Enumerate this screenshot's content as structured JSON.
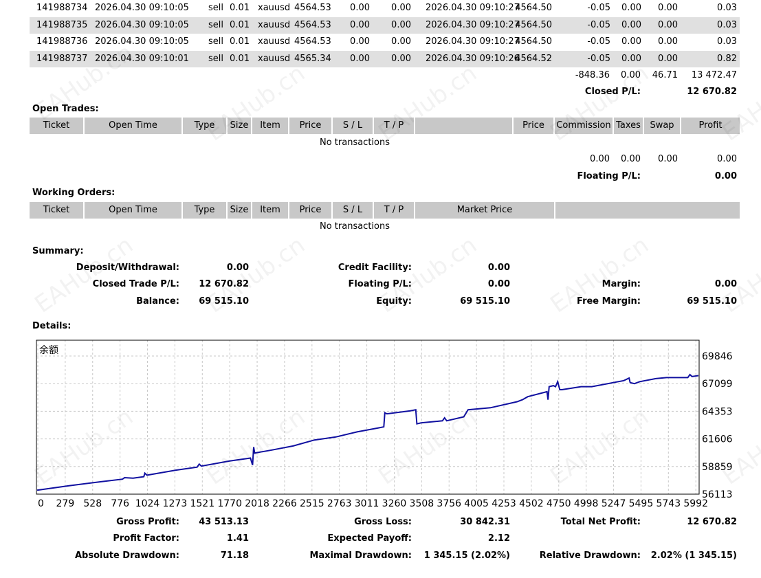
{
  "closed_rows": [
    {
      "ticket": "141988734",
      "open_time": "2026.04.30 09:10:05",
      "type": "sell",
      "size": "0.01",
      "item": "xauusd",
      "price": "4564.53",
      "sl": "0.00",
      "tp": "0.00",
      "close_time": "2026.04.30 09:10:27",
      "close_price": "4564.50",
      "commission": "-0.05",
      "taxes": "0.00",
      "swap": "0.00",
      "profit": "0.03"
    },
    {
      "ticket": "141988735",
      "open_time": "2026.04.30 09:10:05",
      "type": "sell",
      "size": "0.01",
      "item": "xauusd",
      "price": "4564.53",
      "sl": "0.00",
      "tp": "0.00",
      "close_time": "2026.04.30 09:10:27",
      "close_price": "4564.50",
      "commission": "-0.05",
      "taxes": "0.00",
      "swap": "0.00",
      "profit": "0.03"
    },
    {
      "ticket": "141988736",
      "open_time": "2026.04.30 09:10:05",
      "type": "sell",
      "size": "0.01",
      "item": "xauusd",
      "price": "4564.53",
      "sl": "0.00",
      "tp": "0.00",
      "close_time": "2026.04.30 09:10:27",
      "close_price": "4564.50",
      "commission": "-0.05",
      "taxes": "0.00",
      "swap": "0.00",
      "profit": "0.03"
    },
    {
      "ticket": "141988737",
      "open_time": "2026.04.30 09:10:01",
      "type": "sell",
      "size": "0.01",
      "item": "xauusd",
      "price": "4565.34",
      "sl": "0.00",
      "tp": "0.00",
      "close_time": "2026.04.30 09:10:26",
      "close_price": "4564.52",
      "commission": "-0.05",
      "taxes": "0.00",
      "swap": "0.00",
      "profit": "0.82"
    }
  ],
  "closed_totals": {
    "commission": "-848.36",
    "taxes": "0.00",
    "swap": "46.71",
    "profit": "13 472.47"
  },
  "closed_pl": {
    "label": "Closed P/L:",
    "value": "12 670.82"
  },
  "open_trades": {
    "title": "Open Trades:",
    "headers": {
      "ticket": "Ticket",
      "open_time": "Open Time",
      "type": "Type",
      "size": "Size",
      "item": "Item",
      "price": "Price",
      "sl": "S / L",
      "tp": "T / P",
      "price2": "Price",
      "commission": "Commission",
      "taxes": "Taxes",
      "swap": "Swap",
      "profit": "Profit"
    },
    "empty": "No transactions",
    "totals": {
      "commission": "0.00",
      "taxes": "0.00",
      "swap": "0.00",
      "profit": "0.00"
    },
    "floating_label": "Floating P/L:",
    "floating_value": "0.00"
  },
  "working_orders": {
    "title": "Working Orders:",
    "headers": {
      "ticket": "Ticket",
      "open_time": "Open Time",
      "type": "Type",
      "size": "Size",
      "item": "Item",
      "price": "Price",
      "sl": "S / L",
      "tp": "T / P",
      "market_price": "Market Price"
    },
    "empty": "No transactions"
  },
  "summary": {
    "title": "Summary:",
    "deposit_label": "Deposit/Withdrawal:",
    "deposit": "0.00",
    "credit_label": "Credit Facility:",
    "credit": "0.00",
    "closed_label": "Closed Trade P/L:",
    "closed": "12 670.82",
    "floating_label": "Floating P/L:",
    "floating": "0.00",
    "margin_label": "Margin:",
    "margin": "0.00",
    "balance_label": "Balance:",
    "balance": "69 515.10",
    "equity_label": "Equity:",
    "equity": "69 515.10",
    "free_margin_label": "Free Margin:",
    "free_margin": "69 515.10"
  },
  "details": {
    "title": "Details:",
    "gross_profit_label": "Gross Profit:",
    "gross_profit": "43 513.13",
    "gross_loss_label": "Gross Loss:",
    "gross_loss": "30 842.31",
    "total_net_label": "Total Net Profit:",
    "total_net": "12 670.82",
    "profit_factor_label": "Profit Factor:",
    "profit_factor": "1.41",
    "expected_payoff_label": "Expected Payoff:",
    "expected_payoff": "2.12",
    "abs_dd_label": "Absolute Drawdown:",
    "abs_dd": "71.18",
    "max_dd_label": "Maximal Drawdown:",
    "max_dd": "1 345.15 (2.02%)",
    "rel_dd_label": "Relative Drawdown:",
    "rel_dd": "2.02% (1 345.15)"
  },
  "watermark": "EAHub.cn",
  "chart_data": {
    "type": "line",
    "title": "余额",
    "x_ticks": [
      "0",
      "279",
      "528",
      "776",
      "1024",
      "1273",
      "1521",
      "1770",
      "2018",
      "2266",
      "2515",
      "2763",
      "3011",
      "3260",
      "3508",
      "3756",
      "4005",
      "4253",
      "4502",
      "4750",
      "4998",
      "5247",
      "5495",
      "5743",
      "5992"
    ],
    "y_ticks": [
      "69846",
      "67099",
      "64353",
      "61606",
      "58859",
      "56113"
    ],
    "xlim": [
      0,
      6200
    ],
    "ylim": [
      56113,
      69846
    ],
    "grid": true,
    "line_color": "#1010a0",
    "series": [
      {
        "values": [
          [
            0,
            56500
          ],
          [
            300,
            56950
          ],
          [
            600,
            57350
          ],
          [
            800,
            57600
          ],
          [
            820,
            57750
          ],
          [
            900,
            57700
          ],
          [
            1000,
            57850
          ],
          [
            1010,
            58200
          ],
          [
            1030,
            58000
          ],
          [
            1300,
            58500
          ],
          [
            1500,
            58800
          ],
          [
            1520,
            59100
          ],
          [
            1540,
            58900
          ],
          [
            1800,
            59400
          ],
          [
            2000,
            59700
          ],
          [
            2020,
            59000
          ],
          [
            2030,
            60800
          ],
          [
            2040,
            60200
          ],
          [
            2200,
            60500
          ],
          [
            2400,
            60900
          ],
          [
            2600,
            61500
          ],
          [
            2800,
            61800
          ],
          [
            3000,
            62300
          ],
          [
            3200,
            62700
          ],
          [
            3250,
            62800
          ],
          [
            3260,
            64200
          ],
          [
            3280,
            64100
          ],
          [
            3500,
            64400
          ],
          [
            3550,
            64500
          ],
          [
            3560,
            63100
          ],
          [
            3600,
            63200
          ],
          [
            3800,
            63400
          ],
          [
            3820,
            63700
          ],
          [
            3840,
            63400
          ],
          [
            4000,
            63800
          ],
          [
            4020,
            64150
          ],
          [
            4040,
            64500
          ],
          [
            4250,
            64700
          ],
          [
            4500,
            65300
          ],
          [
            4550,
            65500
          ],
          [
            4600,
            65800
          ],
          [
            4780,
            66300
          ],
          [
            4790,
            65500
          ],
          [
            4800,
            66800
          ],
          [
            4840,
            66900
          ],
          [
            4860,
            66800
          ],
          [
            4880,
            67300
          ],
          [
            4900,
            66500
          ],
          [
            4920,
            66500
          ],
          [
            5100,
            66800
          ],
          [
            5200,
            66800
          ],
          [
            5500,
            67400
          ],
          [
            5550,
            67650
          ],
          [
            5560,
            67200
          ],
          [
            5600,
            67100
          ],
          [
            5650,
            67300
          ],
          [
            5800,
            67600
          ],
          [
            5900,
            67700
          ],
          [
            6000,
            67700
          ],
          [
            6100,
            67700
          ],
          [
            6120,
            68000
          ],
          [
            6140,
            67800
          ],
          [
            6200,
            67900
          ]
        ]
      }
    ]
  }
}
